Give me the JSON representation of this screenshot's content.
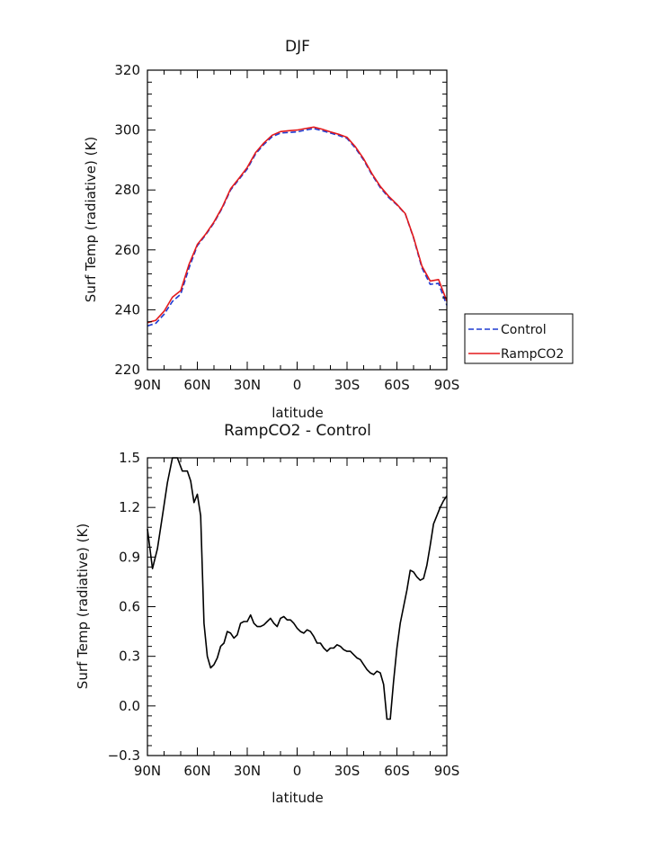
{
  "chart_data": [
    {
      "type": "line",
      "title": "DJF",
      "xlabel": "latitude",
      "ylabel": "Surf Temp (radiative) (K)",
      "xlim": [
        -90,
        90
      ],
      "ylim": [
        220,
        320
      ],
      "x_ticks": [
        -90,
        -60,
        -30,
        0,
        30,
        60,
        90
      ],
      "x_tick_labels": [
        "90N",
        "60N",
        "30N",
        "0",
        "30S",
        "60S",
        "90S"
      ],
      "y_ticks": [
        220,
        240,
        260,
        280,
        300,
        320
      ],
      "y_tick_labels": [
        "220",
        "240",
        "260",
        "280",
        "300",
        "320"
      ],
      "legend_position": "right",
      "x": [
        -90,
        -85,
        -80,
        -75,
        -70,
        -65,
        -60,
        -55,
        -50,
        -45,
        -40,
        -35,
        -30,
        -25,
        -20,
        -15,
        -10,
        -5,
        0,
        5,
        10,
        15,
        20,
        25,
        30,
        35,
        40,
        45,
        50,
        55,
        60,
        65,
        70,
        75,
        80,
        85,
        90
      ],
      "series": [
        {
          "name": "Control",
          "color": "#1f3bd1",
          "dash": "dashed",
          "values": [
            234.6,
            235.5,
            238.5,
            242.8,
            245.2,
            254.0,
            261.4,
            265.0,
            269.0,
            274.0,
            280.0,
            283.5,
            287.0,
            292.0,
            295.2,
            297.8,
            299.0,
            299.2,
            299.4,
            300.0,
            300.5,
            299.8,
            299.0,
            298.2,
            297.2,
            294.0,
            290.0,
            285.0,
            280.8,
            277.5,
            275.0,
            272.0,
            264.0,
            254.0,
            248.5,
            248.8,
            241.5
          ]
        },
        {
          "name": "RampCO2",
          "color": "#e31a1c",
          "dash": "solid",
          "values": [
            235.7,
            236.5,
            239.5,
            244.2,
            246.4,
            255.2,
            261.8,
            265.3,
            269.3,
            274.3,
            280.4,
            283.9,
            287.5,
            292.5,
            295.7,
            298.3,
            299.5,
            299.8,
            300.0,
            300.5,
            301.0,
            300.3,
            299.4,
            298.6,
            297.6,
            294.4,
            290.4,
            285.4,
            281.2,
            277.9,
            275.2,
            272.1,
            264.2,
            254.6,
            249.6,
            250.1,
            242.9
          ]
        }
      ]
    },
    {
      "type": "line",
      "title": "RampCO2 - Control",
      "xlabel": "latitude",
      "ylabel": "Surf Temp (radiative) (K)",
      "xlim": [
        -90,
        90
      ],
      "ylim": [
        -0.3,
        1.5
      ],
      "x_ticks": [
        -90,
        -60,
        -30,
        0,
        30,
        60,
        90
      ],
      "x_tick_labels": [
        "90N",
        "60N",
        "30N",
        "0",
        "30S",
        "60S",
        "90S"
      ],
      "y_ticks": [
        -0.3,
        0.0,
        0.3,
        0.6,
        0.9,
        1.2,
        1.5
      ],
      "y_tick_labels": [
        "−0.3",
        "0.0",
        "0.3",
        "0.6",
        "0.9",
        "1.2",
        "1.5"
      ],
      "x": [
        -90,
        -87,
        -84,
        -81,
        -78,
        -75,
        -72,
        -69,
        -66,
        -64,
        -62,
        -60,
        -58,
        -56,
        -54,
        -52,
        -50,
        -48,
        -46,
        -44,
        -42,
        -40,
        -38,
        -36,
        -34,
        -32,
        -30,
        -28,
        -26,
        -24,
        -22,
        -20,
        -18,
        -16,
        -14,
        -12,
        -10,
        -8,
        -6,
        -4,
        -2,
        0,
        2,
        4,
        6,
        8,
        10,
        12,
        14,
        16,
        18,
        20,
        22,
        24,
        26,
        28,
        30,
        32,
        34,
        36,
        38,
        40,
        42,
        44,
        46,
        48,
        50,
        52,
        54,
        56,
        58,
        60,
        62,
        64,
        66,
        68,
        70,
        72,
        74,
        76,
        78,
        80,
        82,
        84,
        86,
        88,
        90
      ],
      "series": [
        {
          "name": "",
          "color": "#000000",
          "dash": "solid",
          "values": [
            1.07,
            0.83,
            0.95,
            1.15,
            1.35,
            1.5,
            1.5,
            1.42,
            1.42,
            1.36,
            1.23,
            1.28,
            1.15,
            0.5,
            0.3,
            0.23,
            0.25,
            0.29,
            0.36,
            0.38,
            0.45,
            0.44,
            0.41,
            0.43,
            0.5,
            0.51,
            0.51,
            0.55,
            0.5,
            0.48,
            0.48,
            0.49,
            0.51,
            0.53,
            0.5,
            0.48,
            0.53,
            0.54,
            0.52,
            0.52,
            0.5,
            0.47,
            0.45,
            0.44,
            0.46,
            0.45,
            0.42,
            0.38,
            0.38,
            0.35,
            0.33,
            0.35,
            0.35,
            0.37,
            0.36,
            0.34,
            0.33,
            0.33,
            0.31,
            0.29,
            0.28,
            0.25,
            0.22,
            0.2,
            0.19,
            0.21,
            0.2,
            0.13,
            -0.08,
            -0.08,
            0.15,
            0.35,
            0.5,
            0.6,
            0.7,
            0.82,
            0.81,
            0.78,
            0.76,
            0.77,
            0.85,
            0.97,
            1.1,
            1.15,
            1.2,
            1.24,
            1.27
          ]
        }
      ]
    }
  ]
}
